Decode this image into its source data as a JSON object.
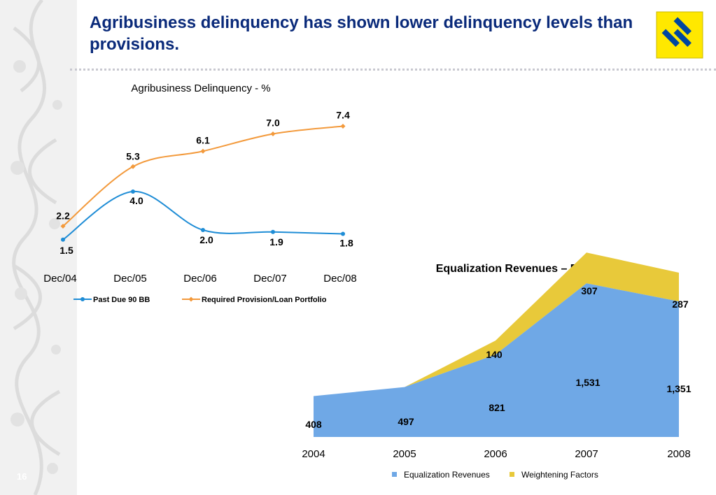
{
  "slide": {
    "title": "Agribusiness delinquency has shown lower delinquency levels than provisions.",
    "page_number": "16",
    "logo_icon": "banco-do-brasil-logo-icon"
  },
  "colors": {
    "title": "#0a2a7a",
    "past_due": "#1f8dd6",
    "required_provision": "#f39a3c",
    "equalization": "#6fa8e6",
    "weightening": "#e8c93a",
    "logo_yellow": "#ffe800",
    "logo_blue": "#0046a0"
  },
  "chart_data": [
    {
      "type": "line",
      "title": "Agribusiness Delinquency - %",
      "categories": [
        "Dec/04",
        "Dec/05",
        "Dec/06",
        "Dec/07",
        "Dec/08"
      ],
      "series": [
        {
          "name": "Past Due 90 BB",
          "values": [
            1.5,
            4.0,
            2.0,
            1.9,
            1.8
          ]
        },
        {
          "name": "Required Provision/Loan Portfolio",
          "values": [
            2.2,
            5.3,
            6.1,
            7.0,
            7.4
          ]
        }
      ],
      "legend": "bottom",
      "grid": false,
      "ylim": [
        0,
        8
      ]
    },
    {
      "type": "area",
      "stacked": true,
      "title": "Equalization Revenues – R$ million",
      "categories": [
        "2004",
        "2005",
        "2006",
        "2007",
        "2008"
      ],
      "series": [
        {
          "name": "Equalization Revenues",
          "values": [
            408,
            497,
            821,
            1531,
            1351
          ]
        },
        {
          "name": "Weightening Factors",
          "values": [
            0,
            0,
            140,
            307,
            287
          ]
        }
      ],
      "value_labels": {
        "Equalization Revenues": [
          "408",
          "497",
          "821",
          "1,531",
          "1,351"
        ],
        "Weightening Factors": [
          "",
          "",
          "140",
          "307",
          "287"
        ]
      },
      "legend": "bottom",
      "grid": false,
      "ylim": [
        0,
        1900
      ]
    }
  ]
}
